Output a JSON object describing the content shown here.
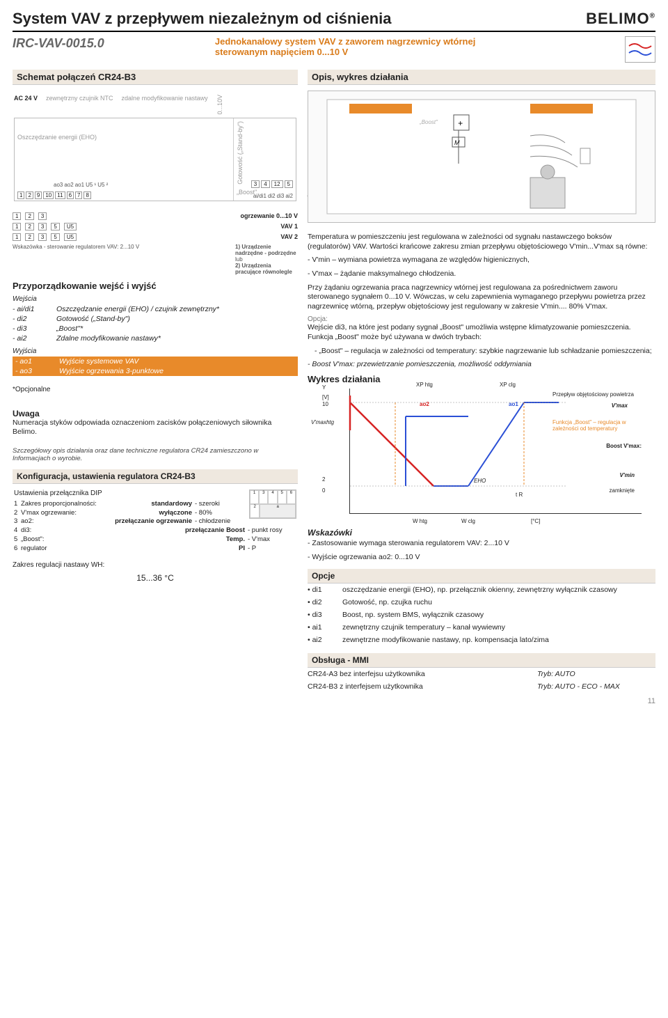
{
  "header": {
    "main_title": "System VAV z przepływem niezależnym od ciśnienia",
    "model": "IRC-VAV-0015.0",
    "subtitle": "Jednokanałowy system VAV z zaworem nagrzewnicy wtórnej sterowanym napięciem 0...10 V",
    "brand": "BELIMO"
  },
  "sections": {
    "left_hdr": "Schemat połączeń CR24-B3",
    "right_hdr": "Opis, wykres działania"
  },
  "wiring": {
    "ac_label": "AC 24 V",
    "ext_sensor": "zewnętrzny czujnik NTC",
    "remote_setpoint": "zdalne modyfikowanie nastawy",
    "voltage_label": "0...10V",
    "eho": "Oszczędzanie energii (EHO)",
    "standby": "Gotowość („Stand-by\")",
    "boost": "„Boost\"",
    "controller": "CR24-B3",
    "terminals_left": [
      "1",
      "2",
      "9",
      "10",
      "11",
      "6",
      "7",
      "8"
    ],
    "terminals_top": [
      "ao3",
      "ao2",
      "ao1",
      "U5 ¹",
      "U5 ²"
    ],
    "terminals_right_row1": [
      "3",
      "4",
      "12",
      "5"
    ],
    "terminals_right_row2": [
      "ai/di1",
      "di2",
      "di3",
      "ai2"
    ]
  },
  "sub_diagrams": {
    "heating_label": "ogrzewanie 0...10 V",
    "vav1": "VAV 1",
    "vav2": "VAV 2",
    "note1": "1) Urządzenie nadrzędne - podrzędne",
    "note_or": "lub",
    "note2": "2) Urządzenia pracujące równolegle",
    "hint": "Wskazówka - sterowanie regulatorem VAV: 2...10 V",
    "rows": [
      {
        "t": [
          "1",
          "2",
          "3"
        ]
      },
      {
        "t": [
          "1",
          "2",
          "3",
          "5",
          "U5"
        ]
      },
      {
        "t": [
          "1",
          "2",
          "3",
          "5",
          "U5"
        ]
      }
    ]
  },
  "io": {
    "title": "Przyporządkowanie wejść i wyjść",
    "inputs_heading": "Wejścia",
    "outputs_heading": "Wyjścia",
    "inputs": [
      {
        "k": "- ai/di1",
        "v": "Oszczędzanie energii (EHO) / czujnik zewnętrzny*"
      },
      {
        "k": "- di2",
        "v": "Gotowość („Stand-by\")"
      },
      {
        "k": "- di3",
        "v": "„Boost\"*"
      },
      {
        "k": "- ai2",
        "v": "Zdalne modyfikowanie nastawy*"
      }
    ],
    "outputs": [
      {
        "k": "- ao1",
        "v": "Wyjście systemowe VAV"
      },
      {
        "k": "- ao3",
        "v": "Wyjście ogrzewania 3-punktowe"
      }
    ],
    "optional": "*Opcjonalne"
  },
  "note_block": {
    "title": "Uwaga",
    "text": "Numeracja styków odpowiada oznaczeniom zacisków połączeniowych siłownika Belimo."
  },
  "config": {
    "pretext": "Szczegółowy opis działania oraz dane techniczne regulatora CR24 zamieszczono w Informacjach o wyrobie.",
    "title": "Konfiguracja, ustawienia regulatora CR24-B3",
    "dip_label": "Ustawienia przełącznika DIP",
    "rows": [
      {
        "n": "1",
        "a": "Zakres proporcjonalności:",
        "b": "standardowy",
        "c": "- szeroki"
      },
      {
        "n": "2",
        "a": "V'max ogrzewanie:",
        "b": "wyłączone",
        "c": "- 80%"
      },
      {
        "n": "3",
        "a": "ao2:",
        "b": "przełączanie ogrzewanie",
        "c": "- chłodzenie"
      },
      {
        "n": "4",
        "a": "di3:",
        "b": "przełączanie Boost",
        "c": "- punkt rosy"
      },
      {
        "n": "5",
        "a": "„Boost\":",
        "b": "Temp.",
        "c": "- V'max"
      },
      {
        "n": "6",
        "a": "regulator",
        "b": "PI",
        "c": "- P"
      }
    ],
    "range_label": "Zakres regulacji nastawy WH:",
    "range_value": "15...36 °C"
  },
  "description": {
    "para1": "Temperatura w pomieszczeniu jest regulowana w zależności od sygnału nastawczego boksów (regulatorów) VAV. Wartości krańcowe zakresu zmian przepływu objętościowego V'min...V'max są równe:",
    "bullet1": "- V'min – wymiana powietrza wymagana ze względów higienicznych,",
    "bullet2": "- V'max – żądanie maksymalnego chłodzenia.",
    "para2": "Przy żądaniu ogrzewania praca nagrzewnicy wtórnej jest regulowana za pośrednictwem zaworu sterowanego sygnałem 0...10 V. Wówczas, w celu zapewnienia wymaganego przepływu powietrza przez nagrzewnicę wtórną, przepływ objętościowy jest regulowany w zakresie V'min.... 80% V'max.",
    "opcja_label": "Opcja:",
    "para3": "Wejście di3, na które jest podany sygnał „Boost\" umożliwia wstępne klimatyzowanie pomieszczenia. Funkcja „Boost\" może być używana w dwóch trybach:",
    "bullet3": "- „Boost\" – regulacja w zależności od temperatury: szybkie nagrzewanie lub schładzanie pomieszczenia;",
    "bullet4": "- Boost V'max: przewietrzanie pomieszczenia, możliwość oddymiania"
  },
  "chart": {
    "title": "Wykres działania",
    "y_axis": "Y",
    "y_unit": "[V]",
    "y_ticks": [
      "10",
      "2",
      "0"
    ],
    "x_unit": "[°C]",
    "labels": {
      "vmax_htg": "V'maxhtg",
      "ao2": "ao2",
      "ao1": "ao1",
      "xp_htg": "XP htg",
      "xp_clg": "XP clg",
      "flow_lbl": "Przepływ objętościowy powietrza",
      "vmax": "V'max",
      "boost_fn": "Funkcja „Boost\" – regulacja w zależności od temperatury",
      "boost_vmax": "Boost V'max:",
      "vmin": "V'min",
      "closed": "zamknięte",
      "eho": "EHO",
      "tr": "t R",
      "w_htg": "W htg",
      "w_clg": "W clg"
    },
    "colors": {
      "red": "#d62222",
      "blue": "#2a4fd6",
      "orange": "#e88a2a",
      "gray": "#888"
    }
  },
  "hints": {
    "title": "Wskazówki",
    "l1": "- Zastosowanie wymaga sterowania regulatorem VAV: 2...10 V",
    "l2": "- Wyjście ogrzewania ao2: 0...10 V"
  },
  "options": {
    "title": "Opcje",
    "rows": [
      {
        "k": "• di1",
        "v": "oszczędzanie energii (EHO), np. przełącznik okienny, zewnętrzny wyłącznik czasowy"
      },
      {
        "k": "• di2",
        "v": "Gotowość, np. czujka ruchu"
      },
      {
        "k": "• di3",
        "v": "Boost, np. system BMS, wyłącznik czasowy"
      },
      {
        "k": "• ai1",
        "v": "zewnętrzny czujnik temperatury – kanał wywiewny"
      },
      {
        "k": "• ai2",
        "v": "zewnętrzne modyfikowanie nastawy, np. kompensacja lato/zima"
      }
    ]
  },
  "mmi": {
    "title": "Obsługa - MMI",
    "l1a": "CR24-A3 bez interfejsu użytkownika",
    "l1b": "Tryb: AUTO",
    "l2a": "CR24-B3 z interfejsem użytkownika",
    "l2b": "Tryb: AUTO - ECO - MAX"
  },
  "scene": {
    "boost_label": "„Boost\""
  },
  "page_number": "11"
}
